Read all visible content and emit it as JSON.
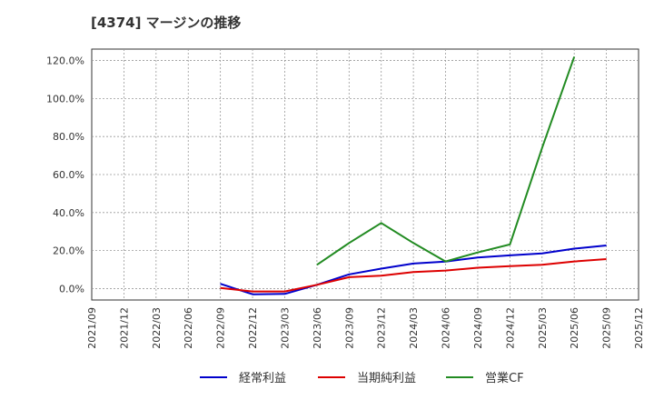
{
  "chart_data": {
    "type": "line",
    "title": "[4374]  マージンの推移",
    "xlabel": "",
    "ylabel": "",
    "ylim": [
      -6,
      126
    ],
    "yticks": [
      0,
      20,
      40,
      60,
      80,
      100,
      120
    ],
    "ytick_labels": [
      "0.0%",
      "20.0%",
      "40.0%",
      "60.0%",
      "80.0%",
      "100.0%",
      "120.0%"
    ],
    "categories": [
      "2021/09",
      "2021/12",
      "2022/03",
      "2022/06",
      "2022/09",
      "2022/12",
      "2023/03",
      "2023/06",
      "2023/09",
      "2023/12",
      "2024/03",
      "2024/06",
      "2024/09",
      "2024/12",
      "2025/03",
      "2025/06",
      "2025/09",
      "2025/12"
    ],
    "grid": true,
    "legend_position": "bottom",
    "series": [
      {
        "name": "経常利益",
        "color": "#0000cc",
        "values": [
          null,
          null,
          null,
          null,
          2.5,
          -3.0,
          -2.8,
          2.0,
          7.5,
          10.5,
          13.2,
          14.2,
          16.4,
          17.5,
          18.5,
          21.0,
          22.7,
          null
        ]
      },
      {
        "name": "当期純利益",
        "color": "#dd0000",
        "values": [
          null,
          null,
          null,
          null,
          0.3,
          -1.5,
          -1.5,
          2.0,
          6.0,
          6.8,
          8.7,
          9.5,
          11.0,
          11.8,
          12.5,
          14.3,
          15.5,
          null
        ]
      },
      {
        "name": "営業CF",
        "color": "#228b22",
        "values": [
          null,
          null,
          null,
          null,
          null,
          null,
          null,
          12.5,
          24.0,
          34.5,
          24.0,
          14.3,
          19.0,
          23.2,
          74.0,
          122.0,
          null,
          null
        ]
      }
    ]
  }
}
